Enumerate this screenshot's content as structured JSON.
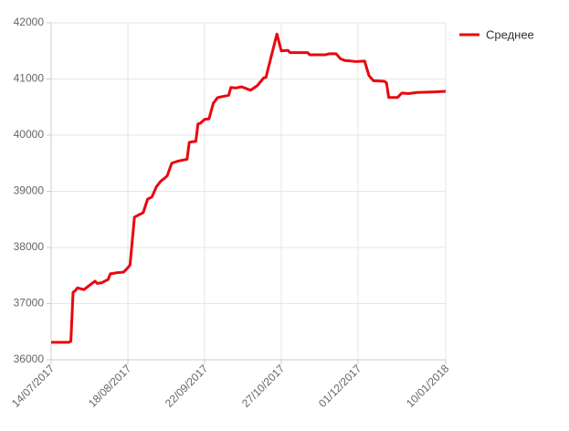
{
  "chart_data": {
    "type": "line",
    "x": [
      "14/07/2017",
      "22/07/2017",
      "23/07/2017",
      "24/07/2017",
      "25/07/2017",
      "26/07/2017",
      "29/07/2017",
      "01/08/2017",
      "03/08/2017",
      "04/08/2017",
      "06/08/2017",
      "09/08/2017",
      "10/08/2017",
      "13/08/2017",
      "16/08/2017",
      "18/08/2017",
      "19/08/2017",
      "21/08/2017",
      "23/08/2017",
      "25/08/2017",
      "27/08/2017",
      "29/08/2017",
      "31/08/2017",
      "02/09/2017",
      "04/09/2017",
      "05/09/2017",
      "07/09/2017",
      "10/09/2017",
      "14/09/2017",
      "15/09/2017",
      "16/09/2017",
      "18/09/2017",
      "19/09/2017",
      "20/09/2017",
      "22/09/2017",
      "24/09/2017",
      "26/09/2017",
      "28/09/2017",
      "03/10/2017",
      "04/10/2017",
      "06/10/2017",
      "09/10/2017",
      "13/10/2017",
      "16/10/2017",
      "19/10/2017",
      "20/10/2017",
      "25/10/2017",
      "27/10/2017",
      "30/10/2017",
      "31/10/2017",
      "08/11/2017",
      "09/11/2017",
      "16/11/2017",
      "18/11/2017",
      "21/11/2017",
      "23/11/2017",
      "25/11/2017",
      "30/11/2017",
      "04/12/2017",
      "06/12/2017",
      "08/12/2017",
      "13/12/2017",
      "14/12/2017",
      "15/12/2017",
      "19/12/2017",
      "21/12/2017",
      "24/12/2017",
      "28/12/2017",
      "05/01/2018",
      "10/01/2018"
    ],
    "series": [
      {
        "name": "Среднее",
        "color": "#e8080f",
        "values": [
          36310,
          36310,
          36330,
          37200,
          37230,
          37280,
          37250,
          37340,
          37400,
          37360,
          37370,
          37430,
          37530,
          37550,
          37560,
          37640,
          37690,
          38540,
          38580,
          38620,
          38860,
          38900,
          39080,
          39180,
          39240,
          39280,
          39500,
          39540,
          39570,
          39870,
          39880,
          39890,
          40200,
          40210,
          40280,
          40290,
          40570,
          40670,
          40710,
          40850,
          40840,
          40860,
          40800,
          40880,
          41020,
          41030,
          41800,
          41500,
          41510,
          41470,
          41470,
          41430,
          41430,
          41450,
          41450,
          41360,
          41330,
          41310,
          41320,
          41060,
          40970,
          40960,
          40930,
          40670,
          40670,
          40750,
          40740,
          40760,
          40770,
          40780
        ]
      }
    ],
    "xlim": [
      "14/07/2017",
      "10/01/2018"
    ],
    "xticks": [
      "14/07/2017",
      "18/08/2017",
      "22/09/2017",
      "27/10/2017",
      "01/12/2017",
      "10/01/2018"
    ],
    "ylim": [
      36000,
      42000
    ],
    "yticks": [
      36000,
      37000,
      38000,
      39000,
      40000,
      41000,
      42000
    ],
    "grid": true,
    "legend": "right"
  }
}
